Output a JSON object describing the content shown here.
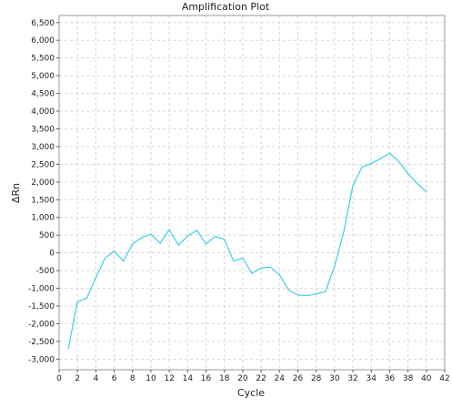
{
  "chart_data": {
    "type": "line",
    "title": "Amplification Plot",
    "xlabel": "Cycle",
    "ylabel": "ΔRn",
    "xlim": [
      0,
      42
    ],
    "ylim": [
      -3300,
      6700
    ],
    "xticks": [
      0,
      2,
      4,
      6,
      8,
      10,
      12,
      14,
      16,
      18,
      20,
      22,
      24,
      26,
      28,
      30,
      32,
      34,
      36,
      38,
      40,
      42
    ],
    "xtick_labels": [
      "0",
      "2",
      "4",
      "6",
      "8",
      "10",
      "12",
      "14",
      "16",
      "18",
      "20",
      "22",
      "24",
      "26",
      "28",
      "30",
      "32",
      "34",
      "36",
      "38",
      "40",
      "42"
    ],
    "yticks": [
      -3000,
      -2500,
      -2000,
      -1500,
      -1000,
      -500,
      0,
      500,
      1000,
      1500,
      2000,
      2500,
      3000,
      3500,
      4000,
      4500,
      5000,
      5500,
      6000,
      6500
    ],
    "ytick_labels": [
      "-3,000",
      "-2,500",
      "-2,000",
      "-1,500",
      "-1,000",
      "-500",
      "0",
      "500",
      "1,000",
      "1,500",
      "2,000",
      "2,500",
      "3,000",
      "3,500",
      "4,000",
      "4,500",
      "5,000",
      "5,500",
      "6,000",
      "6,500"
    ],
    "grid": true,
    "series": [
      {
        "color": "#3ccfe6",
        "x": [
          1,
          2,
          3,
          4,
          5,
          6,
          7,
          8,
          9,
          10,
          11,
          12,
          13,
          14,
          15,
          16,
          17,
          18,
          19,
          20,
          21,
          22,
          23,
          24,
          25,
          26,
          27,
          28,
          29,
          30,
          31,
          32,
          33,
          34,
          35,
          36,
          37,
          38,
          39,
          40
        ],
        "values": [
          -2700,
          -1380,
          -1280,
          -700,
          -150,
          50,
          -230,
          250,
          430,
          530,
          270,
          650,
          220,
          470,
          640,
          250,
          460,
          380,
          -230,
          -150,
          -580,
          -430,
          -400,
          -620,
          -1050,
          -1190,
          -1210,
          -1160,
          -1090,
          -380,
          600,
          1900,
          2420,
          2520,
          2660,
          2820,
          2580,
          2240,
          1960,
          1720
        ]
      }
    ]
  }
}
